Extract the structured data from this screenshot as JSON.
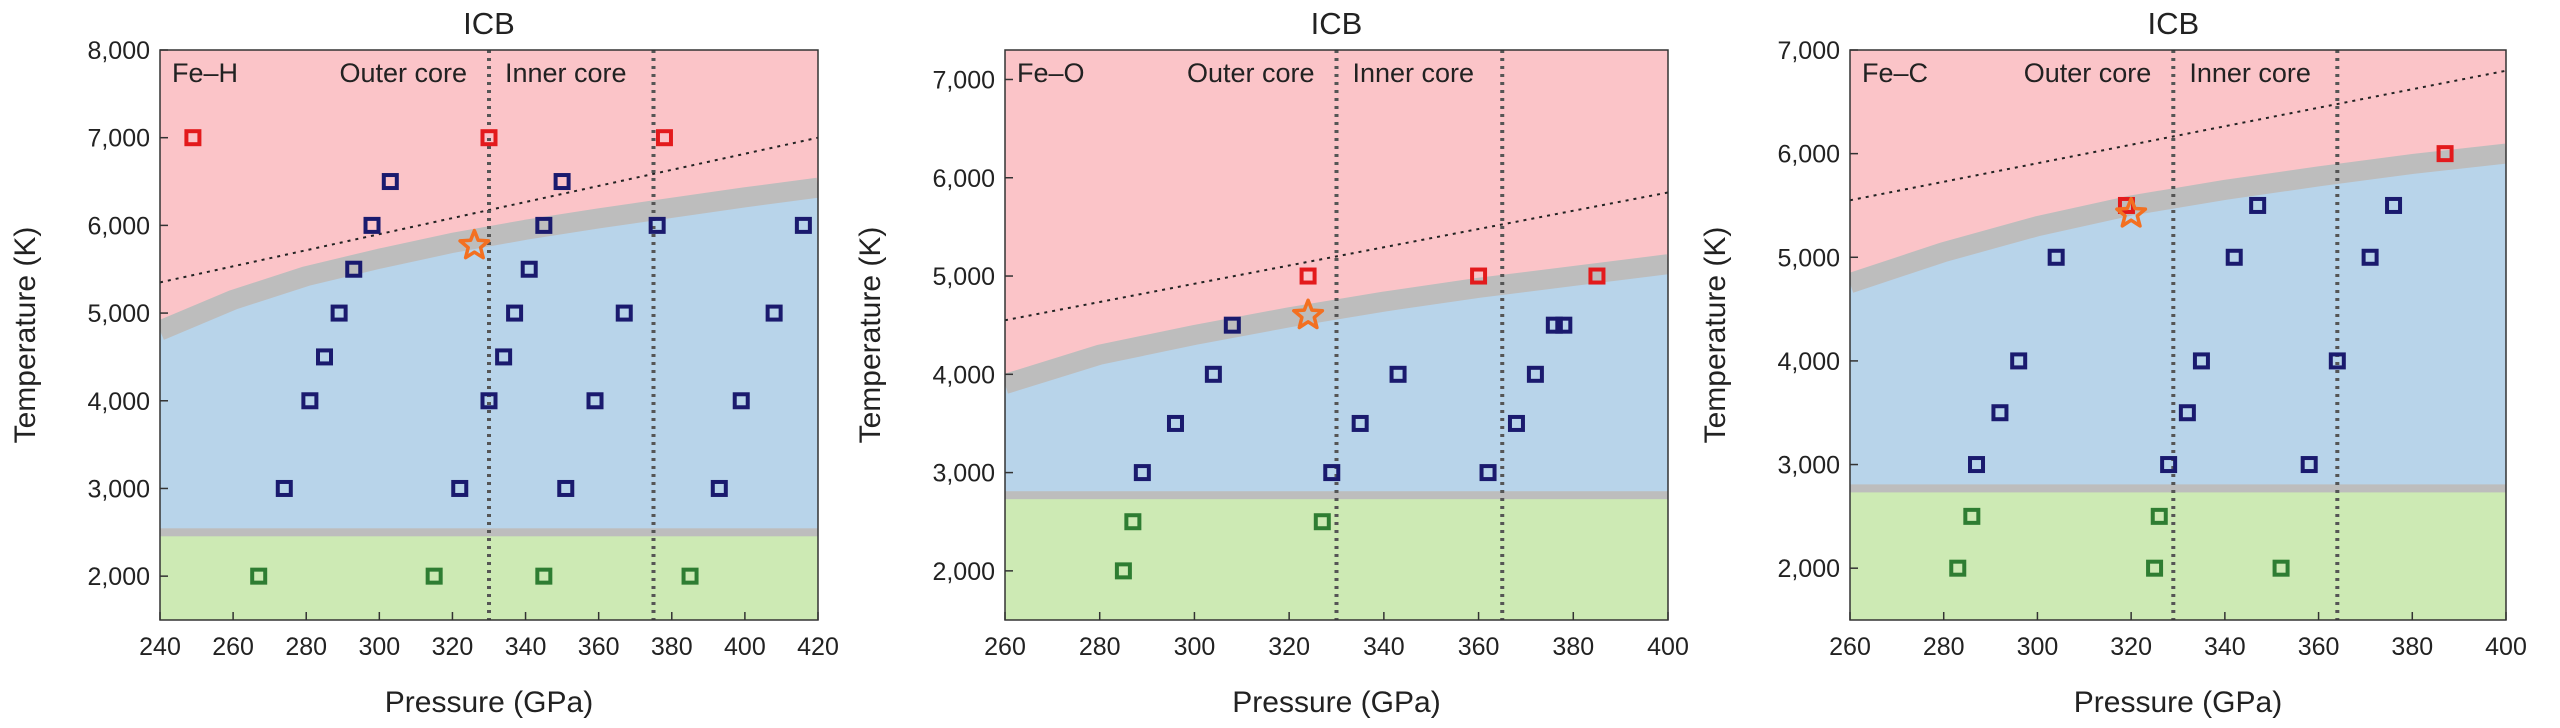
{
  "chart_data": [
    {
      "type": "scatter",
      "panel_label": "Fe–H",
      "region_labels": [
        "Outer core",
        "Inner core"
      ],
      "top_label": "ICB",
      "xlabel": "Pressure (GPa)",
      "ylabel": "Temperature (K)",
      "xlim": [
        240,
        420
      ],
      "ylim": [
        1500,
        8000
      ],
      "xticks": [
        240,
        260,
        280,
        300,
        320,
        340,
        360,
        380,
        400,
        420
      ],
      "xtick_labels": [
        "240",
        "260",
        "280",
        "300",
        "320",
        "340",
        "360",
        "380",
        "400",
        "420"
      ],
      "yticks": [
        2000,
        3000,
        4000,
        5000,
        6000,
        7000,
        8000
      ],
      "ytick_labels": [
        "2,000",
        "3,000",
        "4,000",
        "5,000",
        "6,000",
        "7,000",
        "8,000"
      ],
      "vlines": [
        330,
        375
      ],
      "dotted_line": [
        [
          240,
          5350
        ],
        [
          420,
          7000
        ]
      ],
      "melting_curve": {
        "x": [
          240,
          260,
          280,
          300,
          320,
          340,
          360,
          380,
          400,
          420
        ],
        "y": [
          4800,
          5150,
          5420,
          5620,
          5800,
          5950,
          6080,
          6200,
          6320,
          6430
        ]
      },
      "solid_boundary": 2500,
      "series": [
        {
          "kind": "liquid",
          "color": "#e31a1c",
          "points": [
            [
              249,
              7000
            ],
            [
              330,
              7000
            ],
            [
              378,
              7000
            ]
          ]
        },
        {
          "kind": "solid",
          "color": "#1a1a6e",
          "points": [
            [
              274,
              3000
            ],
            [
              281,
              4000
            ],
            [
              285,
              4500
            ],
            [
              289,
              5000
            ],
            [
              293,
              5500
            ],
            [
              298,
              6000
            ],
            [
              303,
              6500
            ],
            [
              322,
              3000
            ],
            [
              330,
              4000
            ],
            [
              334,
              4500
            ],
            [
              337,
              5000
            ],
            [
              341,
              5500
            ],
            [
              345,
              6000
            ],
            [
              350,
              6500
            ],
            [
              351,
              3000
            ],
            [
              359,
              4000
            ],
            [
              367,
              5000
            ],
            [
              376,
              6000
            ],
            [
              393,
              3000
            ],
            [
              399,
              4000
            ],
            [
              408,
              5000
            ],
            [
              416,
              6000
            ]
          ]
        },
        {
          "kind": "superionic",
          "color": "#2e7d32",
          "points": [
            [
              267,
              2000
            ],
            [
              315,
              2000
            ],
            [
              345,
              2000
            ],
            [
              385,
              2000
            ]
          ]
        },
        {
          "kind": "star",
          "color": "#f37021",
          "points": [
            [
              326,
              5770
            ]
          ]
        }
      ]
    },
    {
      "type": "scatter",
      "panel_label": "Fe–O",
      "region_labels": [
        "Outer core",
        "Inner core"
      ],
      "top_label": "ICB",
      "xlabel": "Pressure (GPa)",
      "ylabel": "Temperature (K)",
      "xlim": [
        260,
        400
      ],
      "ylim": [
        1500,
        7300
      ],
      "xticks": [
        260,
        280,
        300,
        320,
        340,
        360,
        380,
        400
      ],
      "xtick_labels": [
        "260",
        "280",
        "300",
        "320",
        "340",
        "360",
        "380",
        "400"
      ],
      "yticks": [
        2000,
        3000,
        4000,
        5000,
        6000,
        7000
      ],
      "ytick_labels": [
        "2,000",
        "3,000",
        "4,000",
        "5,000",
        "6,000",
        "7,000"
      ],
      "vlines": [
        330,
        365
      ],
      "dotted_line": [
        [
          260,
          4550
        ],
        [
          400,
          5850
        ]
      ],
      "melting_curve": {
        "x": [
          260,
          280,
          300,
          320,
          340,
          360,
          380,
          400
        ],
        "y": [
          3900,
          4200,
          4400,
          4580,
          4740,
          4880,
          5000,
          5120
        ]
      },
      "solid_boundary": 2770,
      "series": [
        {
          "kind": "liquid",
          "color": "#e31a1c",
          "points": [
            [
              324,
              5000
            ],
            [
              360,
              5000
            ],
            [
              385,
              5000
            ]
          ]
        },
        {
          "kind": "solid",
          "color": "#1a1a6e",
          "points": [
            [
              289,
              3000
            ],
            [
              296,
              3500
            ],
            [
              304,
              4000
            ],
            [
              308,
              4500
            ],
            [
              329,
              3000
            ],
            [
              335,
              3500
            ],
            [
              343,
              4000
            ],
            [
              362,
              3000
            ],
            [
              368,
              3500
            ],
            [
              372,
              4000
            ],
            [
              376,
              4500
            ],
            [
              378,
              4500
            ]
          ]
        },
        {
          "kind": "superionic",
          "color": "#2e7d32",
          "points": [
            [
              285,
              2000
            ],
            [
              287,
              2500
            ],
            [
              327,
              2500
            ]
          ]
        },
        {
          "kind": "star",
          "color": "#f37021",
          "points": [
            [
              324,
              4600
            ]
          ]
        }
      ]
    },
    {
      "type": "scatter",
      "panel_label": "Fe–C",
      "region_labels": [
        "Outer core",
        "Inner core"
      ],
      "top_label": "ICB",
      "xlabel": "Pressure (GPa)",
      "ylabel": "Temperature (K)",
      "xlim": [
        260,
        400
      ],
      "ylim": [
        1500,
        7000
      ],
      "xticks": [
        260,
        280,
        300,
        320,
        340,
        360,
        380,
        400
      ],
      "xtick_labels": [
        "260",
        "280",
        "300",
        "320",
        "340",
        "360",
        "380",
        "400"
      ],
      "yticks": [
        2000,
        3000,
        4000,
        5000,
        6000,
        7000
      ],
      "ytick_labels": [
        "2,000",
        "3,000",
        "4,000",
        "5,000",
        "6,000",
        "7,000"
      ],
      "vlines": [
        329,
        364
      ],
      "dotted_line": [
        [
          260,
          5550
        ],
        [
          400,
          6800
        ]
      ],
      "melting_curve": {
        "x": [
          260,
          280,
          300,
          320,
          340,
          360,
          380,
          400
        ],
        "y": [
          4750,
          5050,
          5300,
          5500,
          5650,
          5780,
          5900,
          6000
        ]
      },
      "solid_boundary": 2770,
      "series": [
        {
          "kind": "liquid",
          "color": "#e31a1c",
          "points": [
            [
              319,
              5500
            ],
            [
              387,
              6000
            ]
          ]
        },
        {
          "kind": "solid",
          "color": "#1a1a6e",
          "points": [
            [
              287,
              3000
            ],
            [
              292,
              3500
            ],
            [
              296,
              4000
            ],
            [
              304,
              5000
            ],
            [
              328,
              3000
            ],
            [
              332,
              3500
            ],
            [
              335,
              4000
            ],
            [
              342,
              5000
            ],
            [
              347,
              5500
            ],
            [
              358,
              3000
            ],
            [
              364,
              4000
            ],
            [
              371,
              5000
            ],
            [
              376,
              5500
            ]
          ]
        },
        {
          "kind": "superionic",
          "color": "#2e7d32",
          "points": [
            [
              283,
              2000
            ],
            [
              286,
              2500
            ],
            [
              325,
              2000
            ],
            [
              326,
              2500
            ],
            [
              352,
              2000
            ]
          ]
        },
        {
          "kind": "star",
          "color": "#f37021",
          "points": [
            [
              320,
              5420
            ]
          ]
        }
      ]
    }
  ],
  "colors": {
    "liquid_region": "#fbc4c8",
    "solid_region": "#b8d4ea",
    "superionic_region": "#cdeab4",
    "melting_band": "#bdbdbd",
    "boundary_band": "#bdbdbd",
    "vline": "#555555",
    "star": "#f37021"
  },
  "icons": {
    "liquid": "red-open-square",
    "solid": "navy-open-square",
    "superionic": "green-open-square",
    "star": "orange-open-star"
  }
}
